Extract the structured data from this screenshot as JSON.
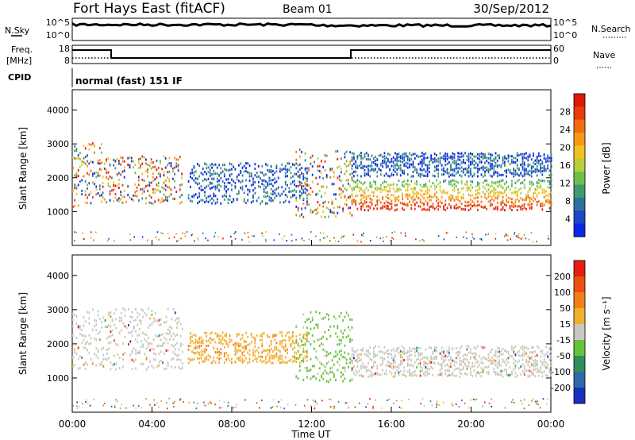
{
  "header": {
    "station": "Fort Hays East (fitACF)",
    "beam": "Beam 01",
    "date": "30/Sep/2012"
  },
  "strips": {
    "nsky_label": "N.Sky",
    "nsearch_label": "N.Search",
    "nsky_ticks": [
      "10^5",
      "10^0"
    ],
    "nsearch_ticks": [
      "10^5",
      "10^0"
    ],
    "freq_label_1": "Freq.",
    "freq_label_2": "[MHz]",
    "freq_ticks": [
      "18",
      "8"
    ],
    "nave_label": "Nave",
    "nave_ticks": [
      "60",
      "0"
    ],
    "cpid_label": "CPID",
    "cpid_value": "normal (fast) 151 IF"
  },
  "chart_data": [
    {
      "type": "heatmap",
      "name": "power",
      "ylabel": "Slant Range [km]",
      "yticks": [
        "1000",
        "2000",
        "3000",
        "4000"
      ],
      "ylim": [
        0,
        4600
      ],
      "colorbar": {
        "label": "Power [dB]",
        "ticks": [
          "4",
          "8",
          "12",
          "16",
          "20",
          "24",
          "28"
        ],
        "colors": [
          "#0a28e6",
          "#1e46c8",
          "#2f70a0",
          "#3f9a6e",
          "#6fc04a",
          "#b8cf3a",
          "#f2c020",
          "#f59a18",
          "#f06e10",
          "#e83c0a",
          "#e01808"
        ]
      },
      "echo_regions": [
        {
          "t0": 0.0,
          "t1": 1.5,
          "r0": 1100,
          "r1": 3000,
          "level": "mixed"
        },
        {
          "t0": 1.5,
          "t1": 5.5,
          "r0": 1200,
          "r1": 2600,
          "level": "mixed"
        },
        {
          "t0": 5.8,
          "t1": 11.8,
          "r0": 1200,
          "r1": 2400,
          "level": "low"
        },
        {
          "t0": 11.2,
          "t1": 14.0,
          "r0": 800,
          "r1": 2800,
          "level": "mixed"
        },
        {
          "t0": 14.0,
          "t1": 24.0,
          "r0": 1000,
          "r1": 1900,
          "level": "high"
        },
        {
          "t0": 14.0,
          "t1": 24.0,
          "r0": 2000,
          "r1": 2700,
          "level": "low"
        }
      ]
    },
    {
      "type": "heatmap",
      "name": "velocity",
      "ylabel": "Slant Range [km]",
      "yticks": [
        "1000",
        "2000",
        "3000",
        "4000"
      ],
      "ylim": [
        0,
        4600
      ],
      "colorbar": {
        "label": "Velocity [m s⁻¹]",
        "ticks": [
          "200",
          "100",
          "50",
          "15",
          "-15",
          "-50",
          "-100",
          "-200"
        ],
        "colors": [
          "#1a30c0",
          "#2f6aa8",
          "#2f8f5a",
          "#66c23c",
          "#c8c8c0",
          "#f2b030",
          "#f08018",
          "#ec5010",
          "#e41e10"
        ]
      },
      "echo_regions": [
        {
          "t0": 0.0,
          "t1": 5.5,
          "r0": 1200,
          "r1": 3000,
          "level": "grey"
        },
        {
          "t0": 5.8,
          "t1": 11.8,
          "r0": 1400,
          "r1": 2300,
          "level": "orange"
        },
        {
          "t0": 11.2,
          "t1": 14.0,
          "r0": 800,
          "r1": 2900,
          "level": "green"
        },
        {
          "t0": 14.0,
          "t1": 24.0,
          "r0": 1000,
          "r1": 1900,
          "level": "grey"
        }
      ]
    }
  ],
  "xaxis": {
    "label": "Time UT",
    "ticks": [
      "00:00",
      "04:00",
      "08:00",
      "12:00",
      "16:00",
      "20:00",
      "00:00"
    ]
  }
}
